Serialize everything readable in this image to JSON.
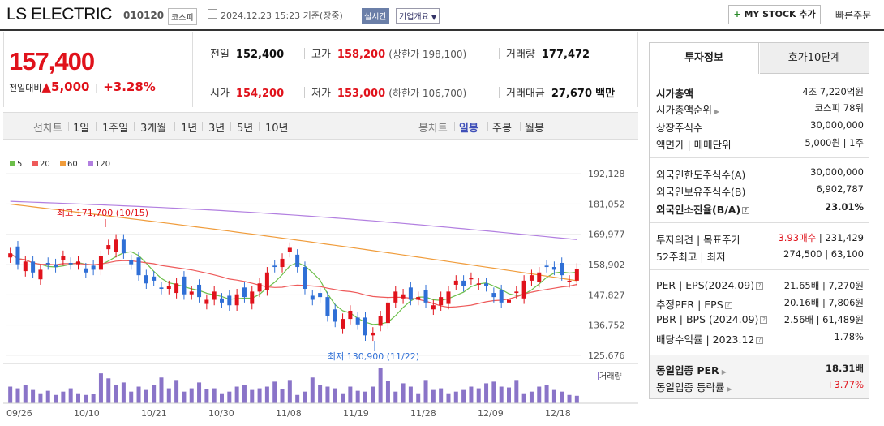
{
  "header": {
    "name": "LS ELECTRIC",
    "code": "010120",
    "market": "코스피",
    "datetime": "2024.12.23 15:23 기준(장중)",
    "realtime": "실시간",
    "corp_info": "기업개요",
    "mystock_plus": "+",
    "mystock": "MY STOCK 추가",
    "fast_order": "빠른주문"
  },
  "quote": {
    "price": "157,400",
    "change_label": "전일대비",
    "change_sign": "▲",
    "change": "5,000",
    "change_sep": "|",
    "change_pct": "+3.28%",
    "prev_label": "전일",
    "prev": "152,400",
    "high_label": "고가",
    "high": "158,200",
    "upper_limit": "(상한가 198,100)",
    "volume_label": "거래량",
    "volume": "177,472",
    "open_label": "시가",
    "open": "154,200",
    "low_label": "저가",
    "low": "153,000",
    "lower_limit": "(하한가 106,700)",
    "amount_label": "거래대금",
    "amount": "27,670",
    "amount_unit": "백만"
  },
  "tabs": {
    "line_chart": "선차트",
    "periods": [
      "1일",
      "1주일",
      "3개월",
      "1년",
      "3년",
      "5년",
      "10년"
    ],
    "candle_chart": "봉차트",
    "candle_types": [
      "일봉",
      "주봉",
      "월봉"
    ],
    "active_candle": "일봉"
  },
  "side": {
    "tab_invest": "투자정보",
    "tab_hoga": "호가10단계",
    "market_cap_label": "시가총액",
    "market_cap": "4조 7,220억원",
    "cap_rank_label": "시가총액순위",
    "cap_rank": "코스피 78위",
    "shares_label": "상장주식수",
    "shares": "30,000,000",
    "par_label": "액면가 | 매매단위",
    "par": "5,000원 | 1주",
    "foreign_limit_label": "외국인한도주식수(A)",
    "foreign_limit": "30,000,000",
    "foreign_hold_label": "외국인보유주식수(B)",
    "foreign_hold": "6,902,787",
    "foreign_ratio_label": "외국인소진율(B/A)",
    "foreign_ratio": "23.01%",
    "opinion_label": "투자의견 | 목표주가",
    "opinion": "3.93매수",
    "opinion_sep": "|",
    "target": "231,429",
    "w52_label": "52주최고 | 최저",
    "w52": "274,500 | 63,100",
    "per_label": "PER | EPS(2024.09)",
    "per": "21.65배 | 7,270원",
    "est_per_label": "추정PER | EPS",
    "est_per": "20.16배 | 7,806원",
    "pbr_label": "PBR | BPS (2024.09)",
    "pbr": "2.56배 | 61,489원",
    "div_label": "배당수익률 | 2023.12",
    "div": "1.78%",
    "peer_per_label": "동일업종 PER",
    "peer_per": "18.31배",
    "peer_rate_label": "동일업종 등락률",
    "peer_rate": "+3.77%"
  },
  "chart_data": {
    "type": "candlestick",
    "legend": [
      "5",
      "20",
      "60",
      "120"
    ],
    "ma_colors": {
      "5": "#6cbf4a",
      "20": "#ee5a5a",
      "60": "#f09c3b",
      "120": "#b27fe0"
    },
    "y_ticks": [
      "192,128",
      "181,052",
      "169,977",
      "158,902",
      "147,827",
      "136,752",
      "125,676"
    ],
    "ylim": [
      125676,
      192128
    ],
    "x_ticks": [
      "09/26",
      "10/10",
      "10/21",
      "10/30",
      "11/08",
      "11/19",
      "11/28",
      "12/09",
      "12/18"
    ],
    "high_annotation": "최고 171,700 (10/15)",
    "low_annotation": "최저 130,900 (11/22)",
    "volume_label": "거래량",
    "up_color": "#e0121b",
    "down_color": "#2f6fd6",
    "closes": [
      163000,
      159000,
      160000,
      156000,
      157000,
      159000,
      158000,
      162000,
      159000,
      160000,
      156000,
      157000,
      162000,
      166000,
      168000,
      163000,
      159000,
      155000,
      152000,
      153000,
      150000,
      151000,
      152000,
      148000,
      149000,
      147000,
      146000,
      149000,
      145000,
      144000,
      148000,
      147000,
      149000,
      152000,
      156000,
      158000,
      161000,
      165000,
      158000,
      150000,
      146000,
      147000,
      140000,
      138000,
      139000,
      142000,
      137000,
      133000,
      134000,
      140000,
      145000,
      149000,
      148000,
      146000,
      147000,
      145000,
      144000,
      147000,
      149000,
      153000,
      151000,
      154000,
      152000,
      151000,
      147000,
      145000,
      146000,
      149000,
      153000,
      155000,
      156000,
      158000,
      157000,
      155000,
      153000,
      157400
    ],
    "volumes": [
      20,
      18,
      22,
      16,
      12,
      15,
      10,
      14,
      18,
      12,
      10,
      11,
      36,
      30,
      22,
      25,
      14,
      20,
      16,
      22,
      31,
      18,
      28,
      14,
      18,
      25,
      17,
      18,
      12,
      14,
      20,
      22,
      16,
      18,
      20,
      26,
      17,
      28,
      10,
      14,
      31,
      22,
      20,
      18,
      12,
      20,
      15,
      14,
      20,
      42,
      27,
      14,
      24,
      20,
      12,
      28,
      16,
      18,
      12,
      14,
      16,
      20,
      18,
      24,
      26,
      20,
      19,
      28,
      12,
      14,
      20,
      22,
      16,
      14,
      10,
      9
    ]
  }
}
